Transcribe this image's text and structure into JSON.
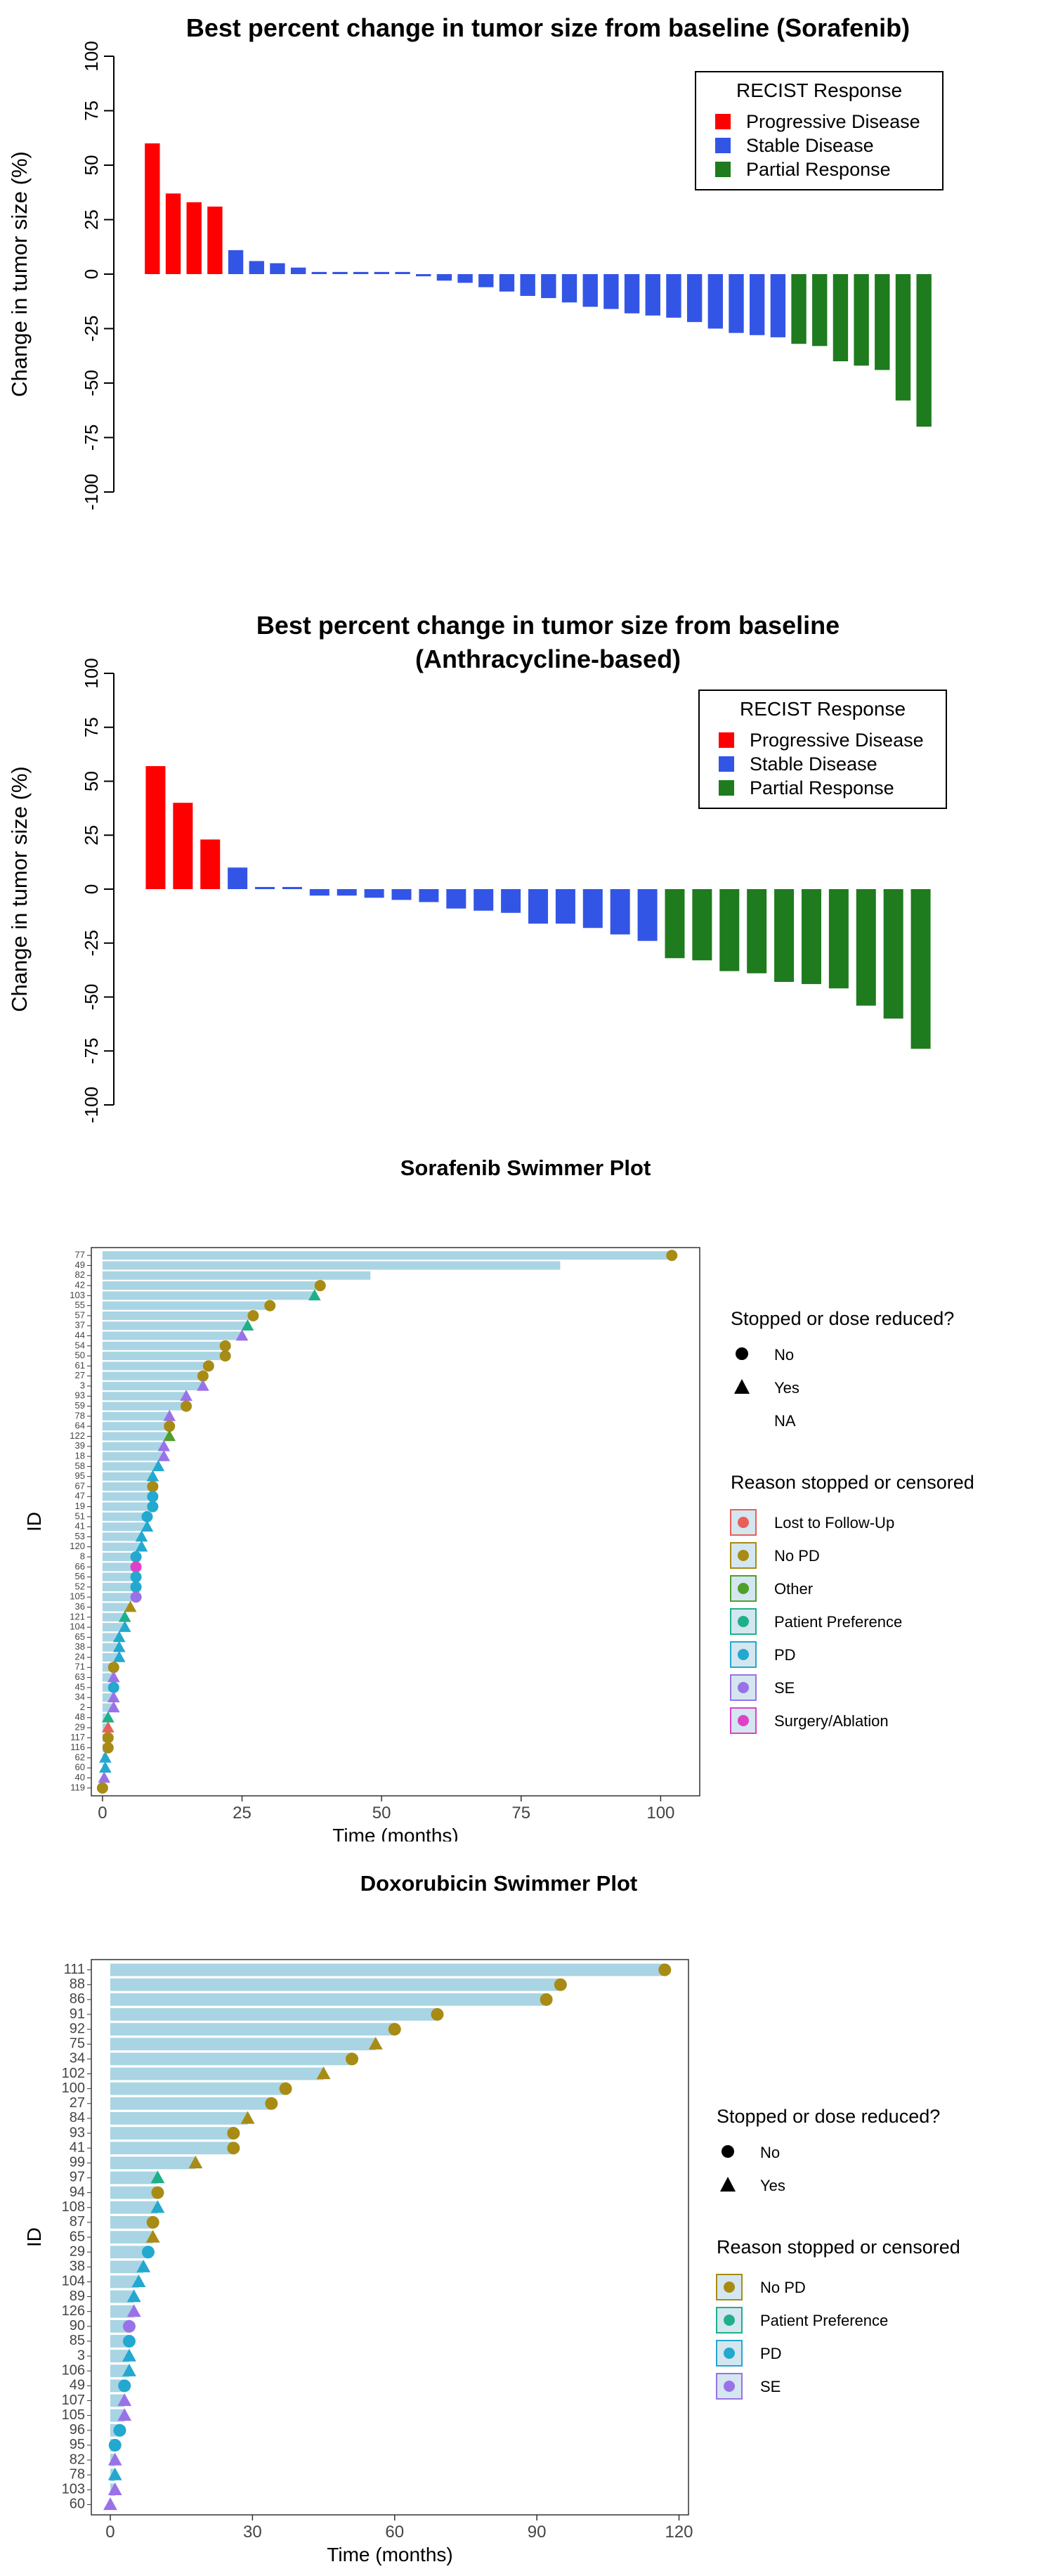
{
  "colors": {
    "progressive": "#ff0000",
    "stable": "#3355e6",
    "partial": "#1e7b1e",
    "swim_bar": "#a9d4e3",
    "lost": "#e8605a",
    "nopd": "#a88b14",
    "other": "#4fa02a",
    "pref": "#1fb08a",
    "pd": "#23a8d0",
    "se": "#9a72e8",
    "surgery": "#e040c8"
  },
  "chart_data": [
    {
      "type": "bar",
      "title": "Best percent change in tumor size from baseline (Sorafenib)",
      "ylabel": "Change in tumor size (%)",
      "yticks": [
        "100",
        "75",
        "50",
        "25",
        "0",
        "-25",
        "-50",
        "-75",
        "-100"
      ],
      "ylim": [
        -100,
        100
      ],
      "legend_title": "RECIST Response",
      "legend": [
        "Progressive Disease",
        "Stable Disease",
        "Partial Response"
      ],
      "values": [
        60,
        37,
        33,
        31,
        11,
        6,
        5,
        3,
        1,
        1,
        1,
        1,
        1,
        -1,
        -3,
        -4,
        -6,
        -8,
        -10,
        -11,
        -13,
        -15,
        -16,
        -18,
        -19,
        -20,
        -22,
        -25,
        -27,
        -28,
        -29,
        -32,
        -33,
        -40,
        -42,
        -44,
        -58,
        -70
      ],
      "categories_response": [
        "PD",
        "PD",
        "PD",
        "PD",
        "SD",
        "SD",
        "SD",
        "SD",
        "SD",
        "SD",
        "SD",
        "SD",
        "SD",
        "SD",
        "SD",
        "SD",
        "SD",
        "SD",
        "SD",
        "SD",
        "SD",
        "SD",
        "SD",
        "SD",
        "SD",
        "SD",
        "SD",
        "SD",
        "SD",
        "SD",
        "SD",
        "PR",
        "PR",
        "PR",
        "PR",
        "PR",
        "PR",
        "PR"
      ]
    },
    {
      "type": "bar",
      "title": [
        "Best percent change in tumor size from baseline",
        "(Anthracycline-based)"
      ],
      "ylabel": "Change in tumor size (%)",
      "yticks": [
        "100",
        "75",
        "50",
        "25",
        "0",
        "-25",
        "-50",
        "-75",
        "-100"
      ],
      "ylim": [
        -100,
        100
      ],
      "legend_title": "RECIST Response",
      "legend": [
        "Progressive Disease",
        "Stable Disease",
        "Partial Response"
      ],
      "values": [
        57,
        40,
        23,
        10,
        1,
        1,
        -3,
        -3,
        -4,
        -5,
        -6,
        -9,
        -10,
        -11,
        -16,
        -16,
        -18,
        -21,
        -24,
        -32,
        -33,
        -38,
        -39,
        -43,
        -44,
        -46,
        -54,
        -60,
        -74
      ],
      "categories_response": [
        "PD",
        "PD",
        "PD",
        "SD",
        "SD",
        "SD",
        "SD",
        "SD",
        "SD",
        "SD",
        "SD",
        "SD",
        "SD",
        "SD",
        "SD",
        "SD",
        "SD",
        "SD",
        "SD",
        "PR",
        "PR",
        "PR",
        "PR",
        "PR",
        "PR",
        "PR",
        "PR",
        "PR",
        "PR"
      ]
    },
    {
      "type": "bar",
      "title": "Sorafenib Swimmer Plot",
      "xlabel": "Time (months)",
      "ylabel": "ID",
      "xticks": [
        "0",
        "25",
        "50",
        "75",
        "100"
      ],
      "xlim": [
        -2,
        107
      ],
      "stopped_legend_title": "Stopped or dose reduced?",
      "stopped_legend": [
        "No",
        "Yes",
        "NA"
      ],
      "reason_legend_title": "Reason stopped or censored",
      "reason_legend": [
        "Lost to Follow-Up",
        "No PD",
        "Other",
        "Patient Preference",
        "PD",
        "SE",
        "Surgery/Ablation"
      ],
      "ids": [
        "77",
        "49",
        "82",
        "42",
        "103",
        "55",
        "57",
        "37",
        "44",
        "54",
        "50",
        "61",
        "27",
        "3",
        "93",
        "59",
        "78",
        "64",
        "122",
        "39",
        "18",
        "58",
        "95",
        "67",
        "47",
        "19",
        "51",
        "41",
        "53",
        "120",
        "8",
        "66",
        "56",
        "52",
        "105",
        "36",
        "121",
        "104",
        "65",
        "38",
        "24",
        "71",
        "63",
        "45",
        "34",
        "2",
        "48",
        "29",
        "117",
        "116",
        "62",
        "60",
        "40",
        "119"
      ],
      "times": [
        102,
        82,
        48,
        39,
        38,
        30,
        27,
        26,
        25,
        22,
        22,
        19,
        18,
        18,
        15,
        15,
        12,
        12,
        12,
        11,
        11,
        10,
        9,
        9,
        9,
        9,
        8,
        8,
        7,
        7,
        6,
        6,
        6,
        6,
        6,
        5,
        4,
        4,
        3,
        3,
        3,
        2,
        2,
        2,
        2,
        2,
        1,
        1,
        1,
        1,
        0.5,
        0.5,
        0.3,
        0
      ],
      "stopped": [
        "No",
        "NA",
        "NA",
        "No",
        "Yes",
        "No",
        "No",
        "Yes",
        "Yes",
        "No",
        "No",
        "No",
        "No",
        "Yes",
        "Yes",
        "No",
        "Yes",
        "No",
        "Yes",
        "Yes",
        "Yes",
        "Yes",
        "Yes",
        "No",
        "No",
        "No",
        "No",
        "Yes",
        "Yes",
        "Yes",
        "No",
        "No",
        "No",
        "No",
        "No",
        "Yes",
        "Yes",
        "Yes",
        "Yes",
        "Yes",
        "Yes",
        "No",
        "Yes",
        "No",
        "Yes",
        "Yes",
        "Yes",
        "Yes",
        "No",
        "No",
        "Yes",
        "Yes",
        "Yes",
        "No"
      ],
      "reason": [
        "nopd",
        "",
        "",
        "nopd",
        "pref",
        "nopd",
        "nopd",
        "pref",
        "se",
        "nopd",
        "nopd",
        "nopd",
        "nopd",
        "se",
        "se",
        "nopd",
        "se",
        "nopd",
        "other",
        "se",
        "se",
        "pd",
        "pd",
        "nopd",
        "pd",
        "pd",
        "pd",
        "pd",
        "pd",
        "pd",
        "pd",
        "surgery",
        "pd",
        "pd",
        "se",
        "nopd",
        "pref",
        "pd",
        "pd",
        "pd",
        "pd",
        "nopd",
        "se",
        "pd",
        "se",
        "se",
        "pref",
        "lost",
        "nopd",
        "nopd",
        "pd",
        "pd",
        "se",
        "nopd"
      ]
    },
    {
      "type": "bar",
      "title": "Doxorubicin Swimmer Plot",
      "xlabel": "Time (months)",
      "ylabel": "ID",
      "xticks": [
        "0",
        "30",
        "60",
        "90",
        "120"
      ],
      "xlim": [
        -4,
        122
      ],
      "stopped_legend_title": "Stopped or dose reduced?",
      "stopped_legend": [
        "No",
        "Yes"
      ],
      "reason_legend_title": "Reason stopped or censored",
      "reason_legend": [
        "No PD",
        "Patient Preference",
        "PD",
        "SE"
      ],
      "ids": [
        "111",
        "88",
        "86",
        "91",
        "92",
        "75",
        "34",
        "102",
        "100",
        "27",
        "84",
        "93",
        "41",
        "99",
        "97",
        "94",
        "108",
        "87",
        "65",
        "29",
        "38",
        "104",
        "89",
        "126",
        "90",
        "85",
        "3",
        "106",
        "49",
        "107",
        "105",
        "96",
        "95",
        "82",
        "78",
        "103",
        "60"
      ],
      "times": [
        117,
        95,
        92,
        69,
        60,
        56,
        51,
        45,
        37,
        34,
        29,
        26,
        26,
        18,
        10,
        10,
        10,
        9,
        9,
        8,
        7,
        6,
        5,
        5,
        4,
        4,
        4,
        4,
        3,
        3,
        3,
        2,
        1,
        1,
        1,
        1,
        0
      ],
      "stopped": [
        "No",
        "No",
        "No",
        "No",
        "No",
        "Yes",
        "No",
        "Yes",
        "No",
        "No",
        "Yes",
        "No",
        "No",
        "Yes",
        "Yes",
        "No",
        "Yes",
        "No",
        "Yes",
        "No",
        "Yes",
        "Yes",
        "Yes",
        "Yes",
        "No",
        "No",
        "Yes",
        "Yes",
        "No",
        "Yes",
        "Yes",
        "No",
        "No",
        "Yes",
        "Yes",
        "Yes",
        "Yes"
      ],
      "reason": [
        "nopd",
        "nopd",
        "nopd",
        "nopd",
        "nopd",
        "nopd",
        "nopd",
        "nopd",
        "nopd",
        "nopd",
        "nopd",
        "nopd",
        "nopd",
        "nopd",
        "pref",
        "nopd",
        "pd",
        "nopd",
        "nopd",
        "pd",
        "pd",
        "pd",
        "pd",
        "se",
        "se",
        "pd",
        "pd",
        "pd",
        "pd",
        "se",
        "se",
        "pd",
        "pd",
        "se",
        "pd",
        "se",
        "se"
      ]
    }
  ]
}
